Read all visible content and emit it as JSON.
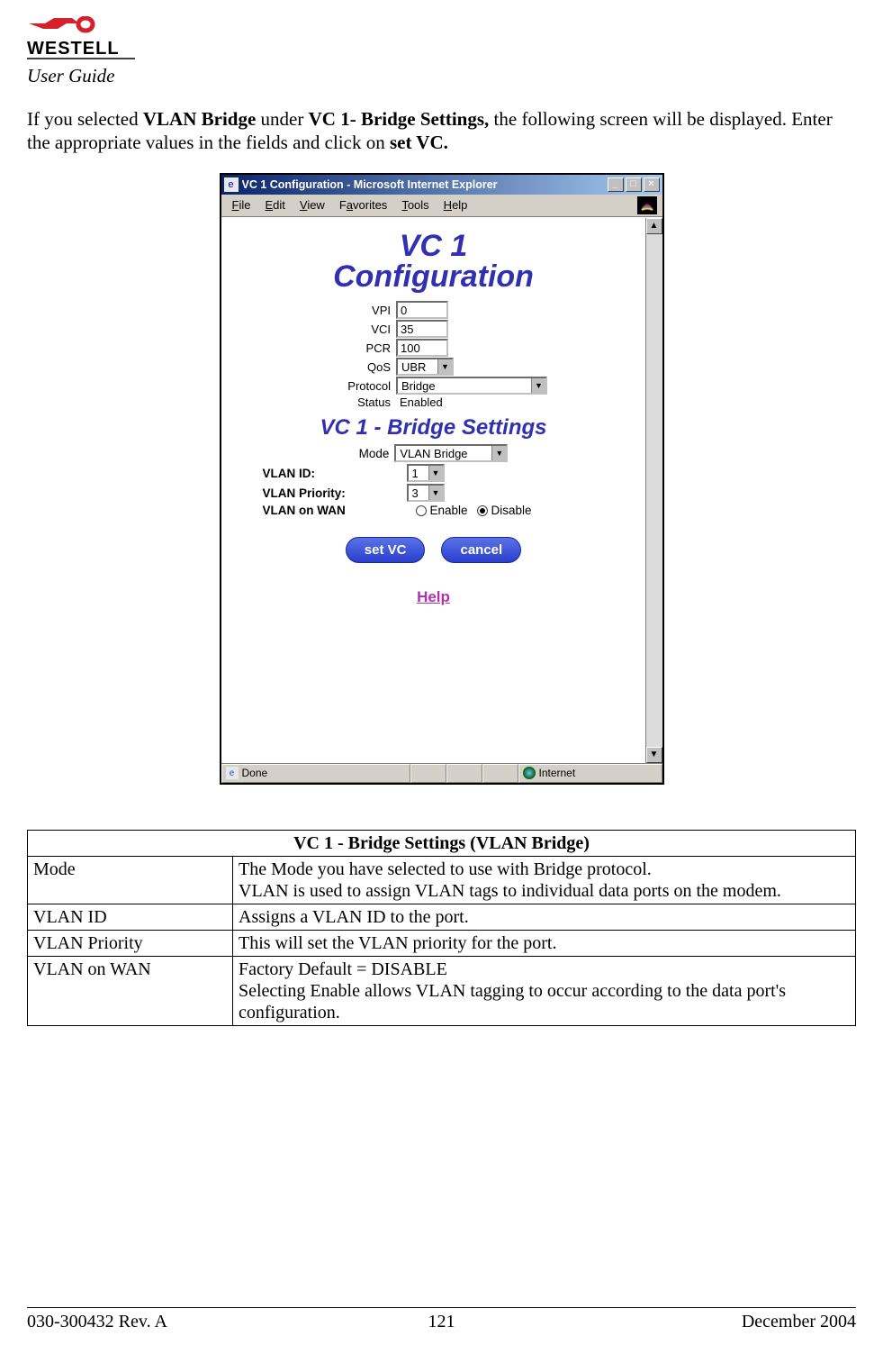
{
  "header": {
    "logo_text": "WESTELL",
    "logo_color": "#d4212c",
    "user_guide": "User Guide"
  },
  "intro": {
    "prefix": "If you selected ",
    "bold1": "VLAN Bridge",
    "mid1": " under ",
    "bold2": "VC 1- Bridge Settings,",
    "mid2": " the following screen will be displayed. Enter the appropriate values in the fields and click on ",
    "bold3": "set VC."
  },
  "window": {
    "title": "VC 1 Configuration - Microsoft Internet Explorer",
    "min": "_",
    "max": "□",
    "close": "×",
    "menu": {
      "file": "File",
      "edit": "Edit",
      "view": "View",
      "favorites": "Favorites",
      "tools": "Tools",
      "help": "Help"
    },
    "scroll_up": "▲",
    "scroll_down": "▼",
    "heading_line1": "VC 1",
    "heading_line2": "Configuration",
    "fields": {
      "vpi_label": "VPI",
      "vpi_value": "0",
      "vci_label": "VCI",
      "vci_value": "35",
      "pcr_label": "PCR",
      "pcr_value": "100",
      "qos_label": "QoS",
      "qos_value": "UBR",
      "protocol_label": "Protocol",
      "protocol_value": "Bridge",
      "status_label": "Status",
      "status_value": "Enabled"
    },
    "bridge_heading": "VC 1 - Bridge Settings",
    "bridge": {
      "mode_label": "Mode",
      "mode_value": "VLAN Bridge",
      "vlan_id_label": "VLAN ID:",
      "vlan_id_value": "1",
      "vlan_priority_label": "VLAN Priority:",
      "vlan_priority_value": "3",
      "vlan_on_wan_label": "VLAN on WAN",
      "enable_label": "Enable",
      "disable_label": "Disable",
      "vlan_on_wan_selected": "disable"
    },
    "buttons": {
      "set_vc": "set VC",
      "cancel": "cancel",
      "pill_bg_top": "#5a72e6",
      "pill_bg_bottom": "#2a3ecf"
    },
    "help_link": "Help",
    "help_color": "#b030b0",
    "status_done": "Done",
    "status_zone": "Internet",
    "heading_color": "#3030b0"
  },
  "table": {
    "title": "VC 1 - Bridge Settings (VLAN Bridge)",
    "rows": [
      {
        "k": "Mode",
        "v": "The Mode you have selected to use with Bridge protocol.\nVLAN is used to assign VLAN tags to individual data ports on the modem."
      },
      {
        "k": "VLAN ID",
        "v": "Assigns a VLAN ID to the port."
      },
      {
        "k": "VLAN Priority",
        "v": "This will set the VLAN priority for the port."
      },
      {
        "k": "VLAN on WAN",
        "v": "Factory Default = DISABLE\nSelecting Enable allows VLAN tagging to occur according to the data port's configuration."
      }
    ]
  },
  "footer": {
    "left": "030-300432 Rev. A",
    "mid": "121",
    "right": "December 2004"
  }
}
